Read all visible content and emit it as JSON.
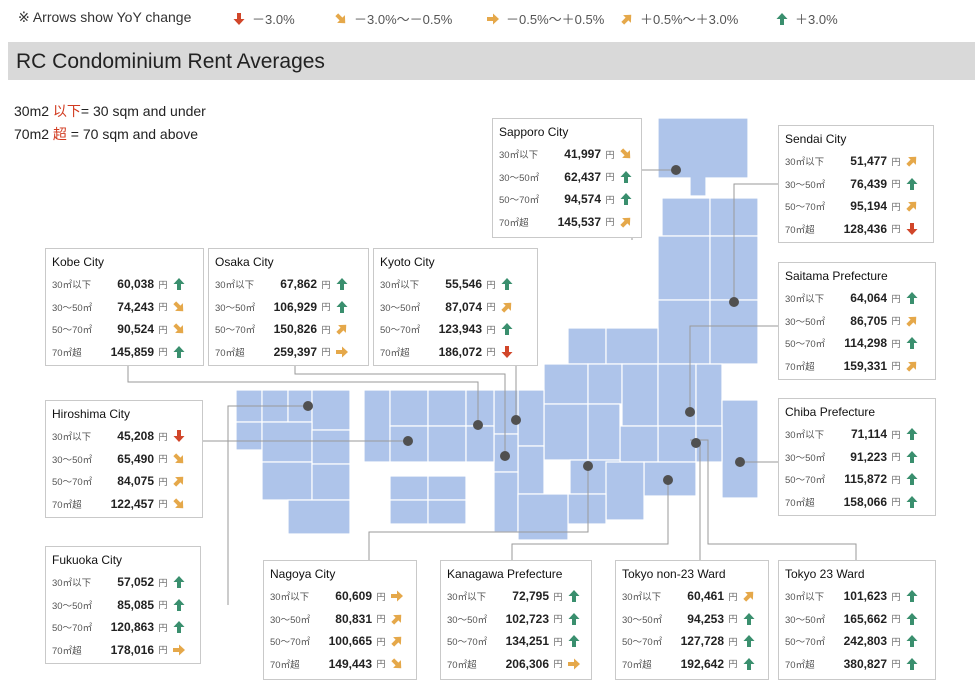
{
  "legend": {
    "note": "※ Arrows show YoY change",
    "items": [
      {
        "type": "down",
        "label": "－3.0%"
      },
      {
        "type": "down-right",
        "label": "－3.0%～－0.5%"
      },
      {
        "type": "right",
        "label": "－0.5%～＋0.5%"
      },
      {
        "type": "up-right",
        "label": "＋0.5%～＋3.0%"
      },
      {
        "type": "up",
        "label": "＋3.0%"
      }
    ]
  },
  "title": "RC Condominium Rent Averages",
  "size_notes": {
    "line1_a": "30m2 ",
    "line1_red": "以下",
    "line1_b": "= 30 sqm and under",
    "line2_a": "70m2 ",
    "line2_red": "超",
    "line2_b": " = 70 sqm and above"
  },
  "yen": "円",
  "colors": {
    "land": "#aec4ea",
    "land_stroke": "#ffffff",
    "dot": "#505050",
    "line": "#9a9a9a",
    "up": "#3a8f6e",
    "up_right": "#e5a84a",
    "right": "#e5a84a",
    "down_right": "#e5a84a",
    "down": "#d1462a"
  },
  "cities": [
    {
      "id": "sapporo",
      "name": "Sapporo City",
      "rows": [
        {
          "label": "30㎡以下",
          "value": "41,997",
          "trend": "down-right"
        },
        {
          "label": "30～50㎡",
          "value": "62,437",
          "trend": "up"
        },
        {
          "label": "50～70㎡",
          "value": "94,574",
          "trend": "up"
        },
        {
          "label": "70㎡超",
          "value": "145,537",
          "trend": "up-right"
        }
      ]
    },
    {
      "id": "sendai",
      "name": "Sendai City",
      "rows": [
        {
          "label": "30㎡以下",
          "value": "51,477",
          "trend": "up-right"
        },
        {
          "label": "30～50㎡",
          "value": "76,439",
          "trend": "up"
        },
        {
          "label": "50～70㎡",
          "value": "95,194",
          "trend": "up-right"
        },
        {
          "label": "70㎡超",
          "value": "128,436",
          "trend": "down"
        }
      ]
    },
    {
      "id": "saitama",
      "name": "Saitama Prefecture",
      "rows": [
        {
          "label": "30㎡以下",
          "value": "64,064",
          "trend": "up"
        },
        {
          "label": "30～50㎡",
          "value": "86,705",
          "trend": "up-right"
        },
        {
          "label": "50～70㎡",
          "value": "114,298",
          "trend": "up"
        },
        {
          "label": "70㎡超",
          "value": "159,331",
          "trend": "up-right"
        }
      ]
    },
    {
      "id": "chiba",
      "name": "Chiba Prefecture",
      "rows": [
        {
          "label": "30㎡以下",
          "value": "71,114",
          "trend": "up"
        },
        {
          "label": "30～50㎡",
          "value": "91,223",
          "trend": "up"
        },
        {
          "label": "50～70㎡",
          "value": "115,872",
          "trend": "up"
        },
        {
          "label": "70㎡超",
          "value": "158,066",
          "trend": "up"
        }
      ]
    },
    {
      "id": "kobe",
      "name": "Kobe City",
      "rows": [
        {
          "label": "30㎡以下",
          "value": "60,038",
          "trend": "up"
        },
        {
          "label": "30～50㎡",
          "value": "74,243",
          "trend": "down-right"
        },
        {
          "label": "50～70㎡",
          "value": "90,524",
          "trend": "down-right"
        },
        {
          "label": "70㎡超",
          "value": "145,859",
          "trend": "up"
        }
      ]
    },
    {
      "id": "osaka",
      "name": "Osaka City",
      "rows": [
        {
          "label": "30㎡以下",
          "value": "67,862",
          "trend": "up"
        },
        {
          "label": "30～50㎡",
          "value": "106,929",
          "trend": "up"
        },
        {
          "label": "50～70㎡",
          "value": "150,826",
          "trend": "up-right"
        },
        {
          "label": "70㎡超",
          "value": "259,397",
          "trend": "right"
        }
      ]
    },
    {
      "id": "kyoto",
      "name": "Kyoto City",
      "rows": [
        {
          "label": "30㎡以下",
          "value": "55,546",
          "trend": "up"
        },
        {
          "label": "30～50㎡",
          "value": "87,074",
          "trend": "up-right"
        },
        {
          "label": "50～70㎡",
          "value": "123,943",
          "trend": "up"
        },
        {
          "label": "70㎡超",
          "value": "186,072",
          "trend": "down"
        }
      ]
    },
    {
      "id": "hiroshima",
      "name": "Hiroshima City",
      "rows": [
        {
          "label": "30㎡以下",
          "value": "45,208",
          "trend": "down"
        },
        {
          "label": "30～50㎡",
          "value": "65,490",
          "trend": "down-right"
        },
        {
          "label": "50～70㎡",
          "value": "84,075",
          "trend": "up-right"
        },
        {
          "label": "70㎡超",
          "value": "122,457",
          "trend": "down-right"
        }
      ]
    },
    {
      "id": "fukuoka",
      "name": "Fukuoka City",
      "rows": [
        {
          "label": "30㎡以下",
          "value": "57,052",
          "trend": "up"
        },
        {
          "label": "30～50㎡",
          "value": "85,085",
          "trend": "up"
        },
        {
          "label": "50～70㎡",
          "value": "120,863",
          "trend": "up"
        },
        {
          "label": "70㎡超",
          "value": "178,016",
          "trend": "right"
        }
      ]
    },
    {
      "id": "nagoya",
      "name": "Nagoya City",
      "rows": [
        {
          "label": "30㎡以下",
          "value": "60,609",
          "trend": "right"
        },
        {
          "label": "30～50㎡",
          "value": "80,831",
          "trend": "up-right"
        },
        {
          "label": "50～70㎡",
          "value": "100,665",
          "trend": "up-right"
        },
        {
          "label": "70㎡超",
          "value": "149,443",
          "trend": "down-right"
        }
      ]
    },
    {
      "id": "kanagawa",
      "name": "Kanagawa Prefecture",
      "rows": [
        {
          "label": "30㎡以下",
          "value": "72,795",
          "trend": "up"
        },
        {
          "label": "30～50㎡",
          "value": "102,723",
          "trend": "up"
        },
        {
          "label": "50～70㎡",
          "value": "134,251",
          "trend": "up"
        },
        {
          "label": "70㎡超",
          "value": "206,306",
          "trend": "right"
        }
      ]
    },
    {
      "id": "tokyo-non23",
      "name": "Tokyo non-23 Ward",
      "rows": [
        {
          "label": "30㎡以下",
          "value": "60,461",
          "trend": "up-right"
        },
        {
          "label": "30～50㎡",
          "value": "94,253",
          "trend": "up"
        },
        {
          "label": "50～70㎡",
          "value": "127,728",
          "trend": "up"
        },
        {
          "label": "70㎡超",
          "value": "192,642",
          "trend": "up"
        }
      ]
    },
    {
      "id": "tokyo-23",
      "name": "Tokyo 23 Ward",
      "rows": [
        {
          "label": "30㎡以下",
          "value": "101,623",
          "trend": "up"
        },
        {
          "label": "30～50㎡",
          "value": "165,662",
          "trend": "up"
        },
        {
          "label": "50～70㎡",
          "value": "242,803",
          "trend": "up"
        },
        {
          "label": "70㎡超",
          "value": "380,827",
          "trend": "up"
        }
      ]
    }
  ]
}
